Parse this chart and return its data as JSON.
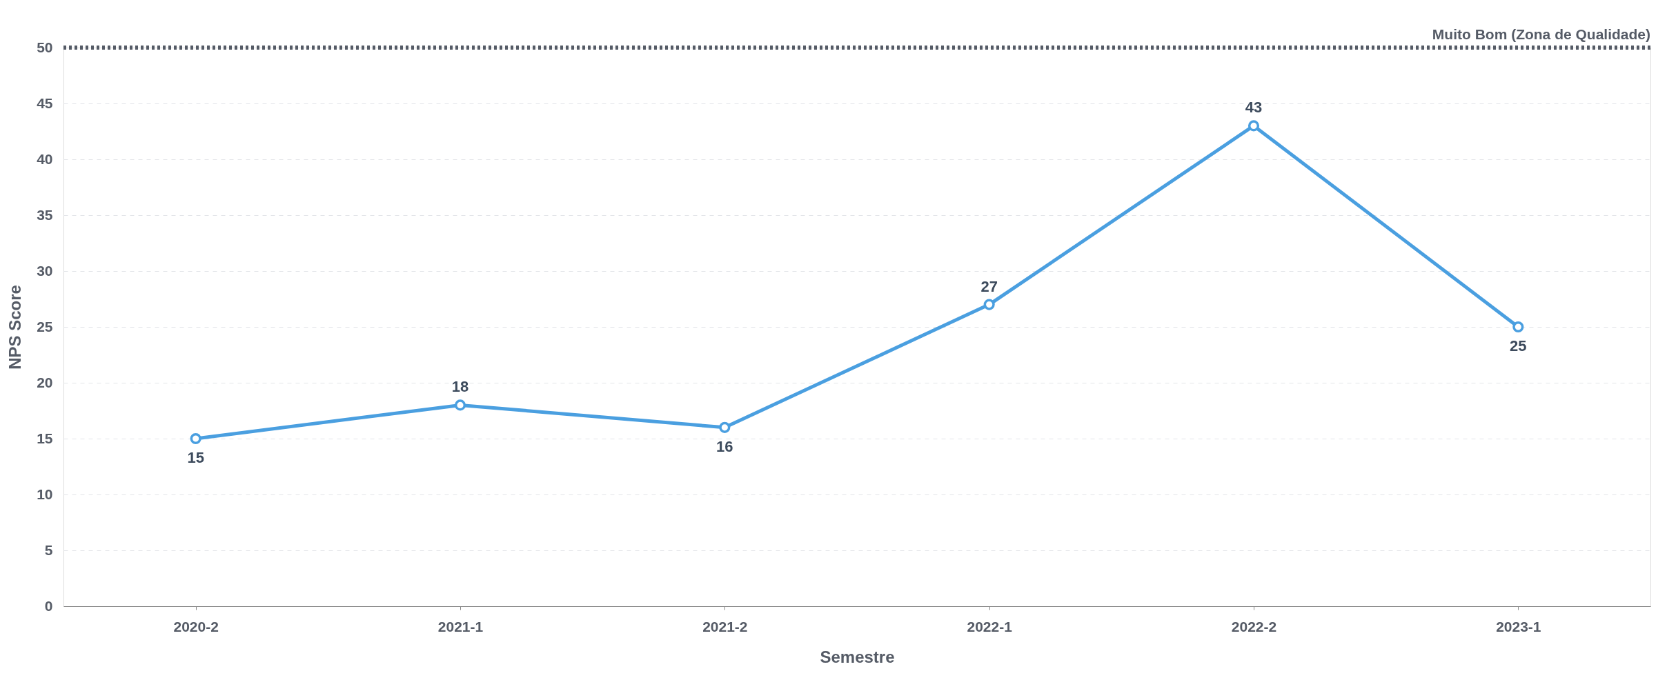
{
  "chart_data": {
    "type": "line",
    "xlabel": "Semestre",
    "ylabel": "NPS Score",
    "categories": [
      "2020-2",
      "2021-1",
      "2021-2",
      "2022-1",
      "2022-2",
      "2023-1"
    ],
    "series": [
      {
        "color": "#4a9fe0",
        "values": [
          15,
          18,
          16,
          27,
          43,
          25
        ]
      }
    ],
    "ylim": [
      0,
      50
    ],
    "yticks": [
      0,
      5,
      10,
      15,
      20,
      25,
      30,
      35,
      40,
      45,
      50
    ],
    "ref_lines": [
      {
        "axis": "y",
        "value": 50,
        "label": "Muito Bom (Zona de Qualidade)",
        "color": "#555b66",
        "line_style": "dotted"
      }
    ],
    "data_labels": true,
    "grid": "y",
    "marker": "circle",
    "line_style": "solid"
  }
}
